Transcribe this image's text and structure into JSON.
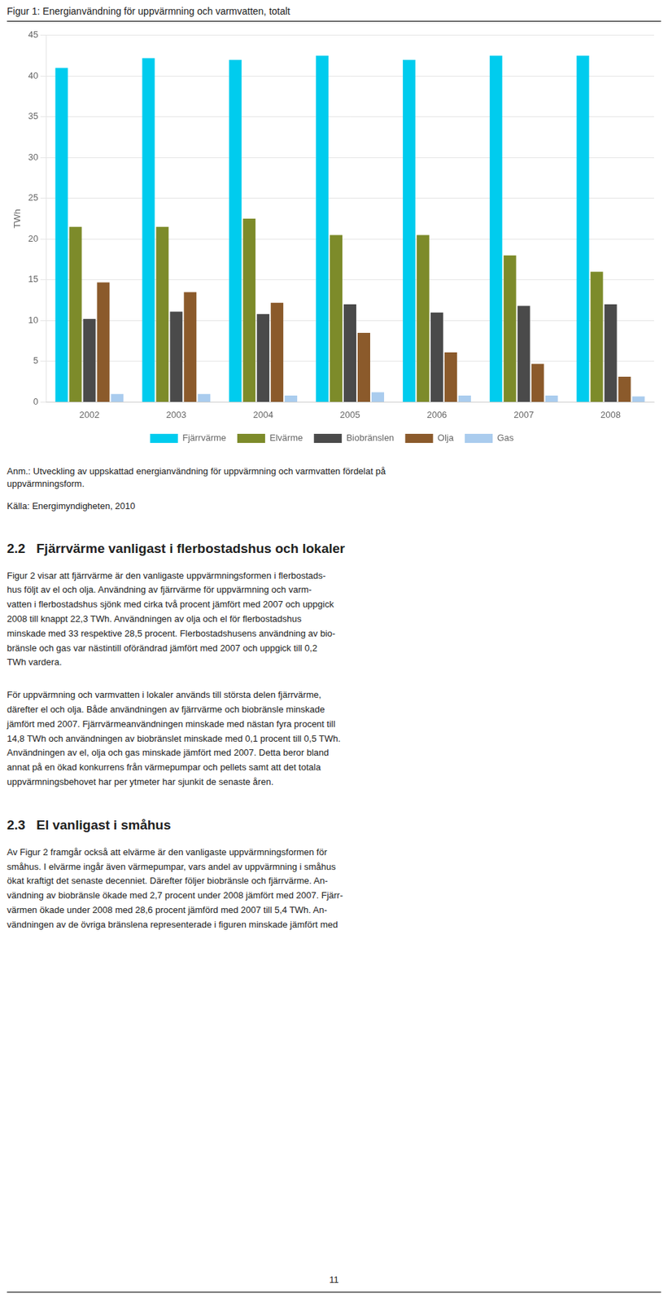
{
  "chart_data": {
    "type": "bar",
    "title": "Figur 1: Energianvändning för uppvärmning och varmvatten, totalt",
    "ylabel": "TWh",
    "categories": [
      "2002",
      "2003",
      "2004",
      "2005",
      "2006",
      "2007",
      "2008"
    ],
    "series": [
      {
        "name": "Fjärrvärme",
        "color": "#00CCEE",
        "values": [
          41.0,
          42.2,
          42.0,
          42.5,
          42.0,
          42.5,
          42.5
        ]
      },
      {
        "name": "Elvärme",
        "color": "#7D8B2A",
        "values": [
          21.5,
          21.5,
          22.5,
          20.5,
          20.5,
          18.0,
          16.0
        ]
      },
      {
        "name": "Biobränslen",
        "color": "#4A4A4A",
        "values": [
          10.2,
          11.1,
          10.8,
          12.0,
          11.0,
          11.8,
          12.0
        ]
      },
      {
        "name": "Olja",
        "color": "#8B5A2B",
        "values": [
          14.7,
          13.5,
          12.2,
          8.5,
          6.1,
          4.7,
          3.1
        ]
      },
      {
        "name": "Gas",
        "color": "#AACCEE",
        "values": [
          1.0,
          1.0,
          0.8,
          1.2,
          0.8,
          0.8,
          0.7
        ]
      }
    ],
    "ylim": [
      0,
      45
    ],
    "yticks": [
      0,
      5,
      10,
      15,
      20,
      25,
      30,
      35,
      40,
      45
    ],
    "grid": true,
    "legend": "bottom",
    "annotations": [
      "Anm.: Utveckling av uppskattad energianvändning för uppvärmning och varmvatten fördelat på\nuppvärmningsform.",
      "Källa: Energimyndigheten, 2010",
      "2.2   Fjärrvärme vanligast i flerbostadshus och lokaler",
      "Figur 2 visar att fjärrvärme är den vanligaste uppvärmningsformen i flerbostads-\nhus följt av el och olja. Användning av fjärrvärme för uppvärmning och varm-\nvatten i flerbostadshus sjönk med cirka två procent jämfört med 2007 och uppgick\n2008 till knappt 22,3 TWh. Användningen av olja och el för flerbostadshus\nminskade med 33 respektive 28,5 procent. Flerbostadshusens användning av bio-\nbränsle och gas var nästintill oförändrad jämfört med 2007 och uppgick till 0,2\nTWh vardera.",
      "För uppvärmning och varmvatten i lokaler används till största delen fjärrvärme,\ndärefter el och olja. Både användningen av fjärrvärme och biobränsle minskade\njämfört med 2007. Fjärrvärmeanvändningen minskade med nästan fyra procent till\n14,8 TWh och användningen av biobränslet minskade med 0,1 procent till 0,5 TWh.\nAnvändningen av el, olja och gas minskade jämfört med 2007. Detta beror bland\nannat på en ökad konkurrens från värmepumpar och pellets samt att det totala\nuppvärmningsbehovet har per ytmeter har sjunkit de senaste åren.",
      "2.3   El vanligast i småhus",
      "Av Figur 2 framgår också att elvärme är den vanligaste uppvärmningsformen för\nsmåhus. I elvärme ingår även värmepumpar, vars andel av uppvärmning i småhus\nökat kraftigt det senaste decenniet. Därefter följer biobränsle och fjärrvärme. An-\nvändning av biobränsle ökade med 2,7 procent under 2008 jämfört med 2007. Fjärr-\nvärmen ökade under 2008 med 28,6 procent jämförd med 2007 till 5,4 TWh. An-\nvändningen av de övriga bränslena representerade i figuren minskade jämfört med",
      "11"
    ]
  }
}
